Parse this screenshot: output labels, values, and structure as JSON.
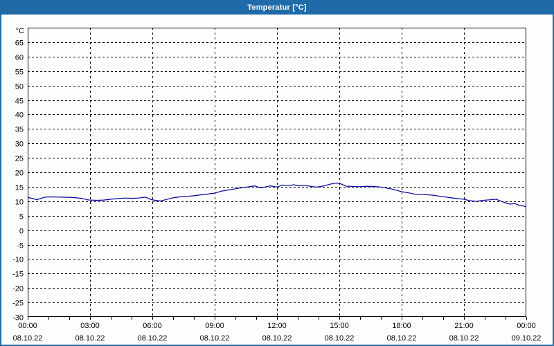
{
  "window": {
    "title": "Temperatur [°C]",
    "title_bar_color": "#1e6ba8",
    "border_color": "#1e6ba8"
  },
  "chart_data": {
    "type": "line",
    "title": "Temperatur [°C]",
    "ylabel": "°C",
    "xlabel": "",
    "ylim": [
      -30,
      70
    ],
    "y_tick_step": 5,
    "y_ticks": [
      65,
      60,
      55,
      50,
      45,
      40,
      35,
      30,
      25,
      20,
      15,
      10,
      5,
      0,
      -5,
      -10,
      -15,
      -20,
      -25,
      -30
    ],
    "x_range_hours": [
      0,
      24
    ],
    "x_minor_tick_hours": 1,
    "x_major_ticks": [
      {
        "hour": 0,
        "time": "00:00",
        "date": "08.10.22"
      },
      {
        "hour": 3,
        "time": "03:00",
        "date": "08.10.22"
      },
      {
        "hour": 6,
        "time": "06:00",
        "date": "08.10.22"
      },
      {
        "hour": 9,
        "time": "09:00",
        "date": "08.10.22"
      },
      {
        "hour": 12,
        "time": "12:00",
        "date": "08.10.22"
      },
      {
        "hour": 15,
        "time": "15:00",
        "date": "08.10.22"
      },
      {
        "hour": 18,
        "time": "18:00",
        "date": "08.10.22"
      },
      {
        "hour": 21,
        "time": "21:00",
        "date": "08.10.22"
      },
      {
        "hour": 24,
        "time": "00:00",
        "date": "09.10.22"
      }
    ],
    "grid": "dashed",
    "grid_color": "#000000",
    "line_color": "#0000a0",
    "series": [
      {
        "name": "Temperatur",
        "points": [
          [
            0,
            11.3
          ],
          [
            0.23,
            11.0
          ],
          [
            0.43,
            10.5
          ],
          [
            0.6,
            10.9
          ],
          [
            0.83,
            11.4
          ],
          [
            1.17,
            11.5
          ],
          [
            1.67,
            11.4
          ],
          [
            2.17,
            11.3
          ],
          [
            2.6,
            11.0
          ],
          [
            2.87,
            10.5
          ],
          [
            3.0,
            10.4
          ],
          [
            3.33,
            10.3
          ],
          [
            3.67,
            10.4
          ],
          [
            4.0,
            10.7
          ],
          [
            4.33,
            10.9
          ],
          [
            4.67,
            11.1
          ],
          [
            5.0,
            11.0
          ],
          [
            5.33,
            11.1
          ],
          [
            5.67,
            11.4
          ],
          [
            5.93,
            10.6
          ],
          [
            6.13,
            10.3
          ],
          [
            6.4,
            10.1
          ],
          [
            6.67,
            10.6
          ],
          [
            7.0,
            11.2
          ],
          [
            7.33,
            11.5
          ],
          [
            7.67,
            11.7
          ],
          [
            8.0,
            11.9
          ],
          [
            8.33,
            12.2
          ],
          [
            8.67,
            12.5
          ],
          [
            9.0,
            12.8
          ],
          [
            9.33,
            13.5
          ],
          [
            9.67,
            13.9
          ],
          [
            10.0,
            14.3
          ],
          [
            10.33,
            14.7
          ],
          [
            10.67,
            15.0
          ],
          [
            10.93,
            15.3
          ],
          [
            11.2,
            14.6
          ],
          [
            11.47,
            15.0
          ],
          [
            11.67,
            15.3
          ],
          [
            12.0,
            14.9
          ],
          [
            12.27,
            15.6
          ],
          [
            12.53,
            15.4
          ],
          [
            12.8,
            15.7
          ],
          [
            13.07,
            15.3
          ],
          [
            13.33,
            15.5
          ],
          [
            13.6,
            15.2
          ],
          [
            13.87,
            14.9
          ],
          [
            14.13,
            15.1
          ],
          [
            14.4,
            15.6
          ],
          [
            14.67,
            16.1
          ],
          [
            14.9,
            16.3
          ],
          [
            15.07,
            16.0
          ],
          [
            15.33,
            15.2
          ],
          [
            15.67,
            15.1
          ],
          [
            16.0,
            15.0
          ],
          [
            16.33,
            15.2
          ],
          [
            16.67,
            15.1
          ],
          [
            17.0,
            14.9
          ],
          [
            17.27,
            14.6
          ],
          [
            17.53,
            14.2
          ],
          [
            17.8,
            13.7
          ],
          [
            18.0,
            13.3
          ],
          [
            18.33,
            12.9
          ],
          [
            18.67,
            12.4
          ],
          [
            19.07,
            12.3
          ],
          [
            19.47,
            12.1
          ],
          [
            19.87,
            11.7
          ],
          [
            20.27,
            11.3
          ],
          [
            20.67,
            10.9
          ],
          [
            21.0,
            10.7
          ],
          [
            21.27,
            10.2
          ],
          [
            21.6,
            10.0
          ],
          [
            21.93,
            10.3
          ],
          [
            22.27,
            10.5
          ],
          [
            22.53,
            10.7
          ],
          [
            22.73,
            10.2
          ],
          [
            22.93,
            9.6
          ],
          [
            23.2,
            9.0
          ],
          [
            23.43,
            9.2
          ],
          [
            23.67,
            8.6
          ],
          [
            23.87,
            8.3
          ],
          [
            24.0,
            8.1
          ]
        ]
      }
    ]
  }
}
